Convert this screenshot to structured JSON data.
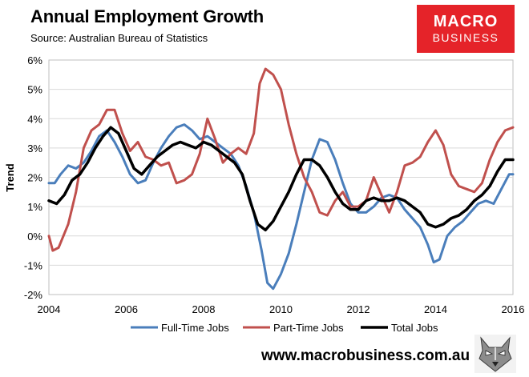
{
  "header": {
    "title": "Annual Employment Growth",
    "subtitle": "Source: Australian Bureau of Statistics"
  },
  "logo": {
    "line1": "MACRO",
    "line2": "BUSINESS",
    "color": "#e52329"
  },
  "footer": {
    "url": "www.macrobusiness.com.au",
    "icon": "wolf-icon"
  },
  "chart_data": {
    "type": "line",
    "title": "Annual Employment Growth",
    "xlabel": "",
    "ylabel": "Trend",
    "xlim": [
      2004,
      2016
    ],
    "ylim": [
      -2,
      6
    ],
    "xticks": [
      2004,
      2006,
      2008,
      2010,
      2012,
      2014,
      2016
    ],
    "x_tick_labels": [
      "2004",
      "2006",
      "2008",
      "2010",
      "2012",
      "2014",
      "2016"
    ],
    "yticks": [
      -2,
      -1,
      0,
      1,
      2,
      3,
      4,
      5,
      6
    ],
    "y_tick_labels": [
      "-2%",
      "-1%",
      "0%",
      "1%",
      "2%",
      "3%",
      "4%",
      "5%",
      "6%"
    ],
    "grid": "horizontal",
    "legend_position": "bottom",
    "series": [
      {
        "name": "Full-Time Jobs",
        "color": "#4a7ebb",
        "x": [
          2004.0,
          2004.15,
          2004.3,
          2004.5,
          2004.7,
          2004.9,
          2005.1,
          2005.3,
          2005.5,
          2005.7,
          2005.9,
          2006.1,
          2006.3,
          2006.5,
          2006.7,
          2006.9,
          2007.1,
          2007.3,
          2007.5,
          2007.7,
          2007.9,
          2008.1,
          2008.3,
          2008.5,
          2008.7,
          2008.9,
          2009.1,
          2009.3,
          2009.5,
          2009.65,
          2009.8,
          2010.0,
          2010.2,
          2010.4,
          2010.6,
          2010.8,
          2011.0,
          2011.2,
          2011.4,
          2011.6,
          2011.8,
          2012.0,
          2012.2,
          2012.4,
          2012.6,
          2012.8,
          2013.0,
          2013.2,
          2013.4,
          2013.6,
          2013.8,
          2013.95,
          2014.1,
          2014.3,
          2014.5,
          2014.7,
          2014.9,
          2015.1,
          2015.3,
          2015.5,
          2015.7,
          2015.9,
          2016.0
        ],
        "values": [
          1.8,
          1.8,
          2.1,
          2.4,
          2.3,
          2.5,
          2.9,
          3.4,
          3.6,
          3.2,
          2.7,
          2.1,
          1.8,
          1.9,
          2.5,
          3.0,
          3.4,
          3.7,
          3.8,
          3.6,
          3.3,
          3.4,
          3.2,
          3.0,
          2.8,
          2.4,
          1.7,
          0.8,
          -0.5,
          -1.6,
          -1.8,
          -1.3,
          -0.6,
          0.4,
          1.5,
          2.6,
          3.3,
          3.2,
          2.6,
          1.8,
          1.1,
          0.8,
          0.8,
          1.0,
          1.3,
          1.4,
          1.3,
          0.9,
          0.6,
          0.3,
          -0.3,
          -0.9,
          -0.8,
          0.0,
          0.3,
          0.5,
          0.8,
          1.1,
          1.2,
          1.1,
          1.6,
          2.1,
          2.1
        ]
      },
      {
        "name": "Part-Time Jobs",
        "color": "#c0504d",
        "x": [
          2004.0,
          2004.1,
          2004.25,
          2004.5,
          2004.7,
          2004.9,
          2005.1,
          2005.3,
          2005.5,
          2005.7,
          2005.9,
          2006.1,
          2006.3,
          2006.5,
          2006.7,
          2006.9,
          2007.1,
          2007.3,
          2007.5,
          2007.7,
          2007.9,
          2008.1,
          2008.3,
          2008.5,
          2008.7,
          2008.9,
          2009.1,
          2009.3,
          2009.45,
          2009.6,
          2009.8,
          2010.0,
          2010.2,
          2010.4,
          2010.6,
          2010.8,
          2011.0,
          2011.2,
          2011.4,
          2011.6,
          2011.8,
          2012.0,
          2012.2,
          2012.4,
          2012.6,
          2012.8,
          2013.0,
          2013.2,
          2013.4,
          2013.6,
          2013.8,
          2014.0,
          2014.2,
          2014.4,
          2014.6,
          2014.8,
          2015.0,
          2015.2,
          2015.4,
          2015.6,
          2015.8,
          2016.0
        ],
        "values": [
          0.0,
          -0.5,
          -0.4,
          0.4,
          1.5,
          3.0,
          3.6,
          3.8,
          4.3,
          4.3,
          3.5,
          2.9,
          3.2,
          2.7,
          2.6,
          2.4,
          2.5,
          1.8,
          1.9,
          2.1,
          2.8,
          4.0,
          3.3,
          2.5,
          2.8,
          3.0,
          2.8,
          3.5,
          5.2,
          5.7,
          5.5,
          5.0,
          3.8,
          2.8,
          2.0,
          1.5,
          0.8,
          0.7,
          1.2,
          1.5,
          1.0,
          1.0,
          1.2,
          2.0,
          1.4,
          0.8,
          1.5,
          2.4,
          2.5,
          2.7,
          3.2,
          3.6,
          3.1,
          2.1,
          1.7,
          1.6,
          1.5,
          1.8,
          2.6,
          3.2,
          3.6,
          3.7
        ]
      },
      {
        "name": "Total Jobs",
        "color": "#000000",
        "x": [
          2004.0,
          2004.2,
          2004.4,
          2004.6,
          2004.8,
          2005.0,
          2005.2,
          2005.4,
          2005.6,
          2005.8,
          2006.0,
          2006.2,
          2006.4,
          2006.6,
          2006.8,
          2007.0,
          2007.2,
          2007.4,
          2007.6,
          2007.8,
          2008.0,
          2008.2,
          2008.4,
          2008.6,
          2008.8,
          2009.0,
          2009.2,
          2009.4,
          2009.6,
          2009.8,
          2010.0,
          2010.2,
          2010.4,
          2010.6,
          2010.8,
          2011.0,
          2011.2,
          2011.4,
          2011.6,
          2011.8,
          2012.0,
          2012.2,
          2012.4,
          2012.6,
          2012.8,
          2013.0,
          2013.2,
          2013.4,
          2013.6,
          2013.8,
          2014.0,
          2014.2,
          2014.4,
          2014.6,
          2014.8,
          2015.0,
          2015.2,
          2015.4,
          2015.6,
          2015.8,
          2016.0
        ],
        "values": [
          1.2,
          1.1,
          1.4,
          1.9,
          2.1,
          2.5,
          3.0,
          3.4,
          3.7,
          3.5,
          2.9,
          2.3,
          2.1,
          2.4,
          2.7,
          2.9,
          3.1,
          3.2,
          3.1,
          3.0,
          3.2,
          3.1,
          2.9,
          2.7,
          2.5,
          2.1,
          1.2,
          0.4,
          0.2,
          0.5,
          1.0,
          1.5,
          2.1,
          2.6,
          2.6,
          2.4,
          2.0,
          1.5,
          1.1,
          0.9,
          0.9,
          1.2,
          1.3,
          1.2,
          1.2,
          1.3,
          1.2,
          1.0,
          0.8,
          0.4,
          0.3,
          0.4,
          0.6,
          0.7,
          0.9,
          1.2,
          1.4,
          1.7,
          2.2,
          2.6,
          2.6
        ]
      }
    ]
  }
}
